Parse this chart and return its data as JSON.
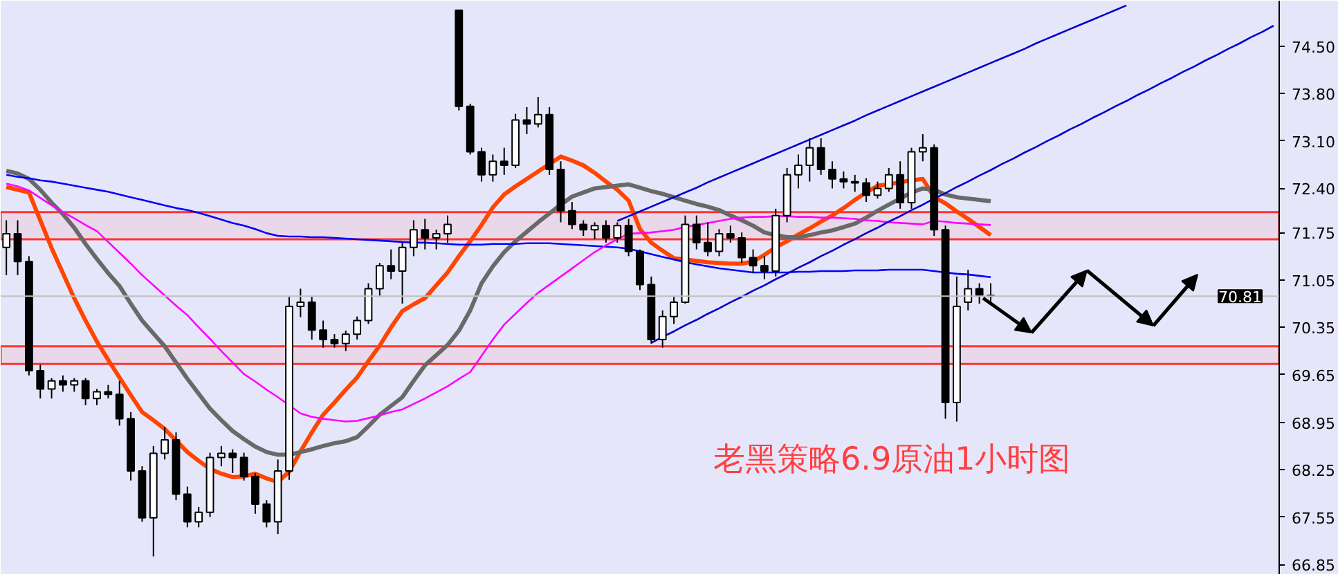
{
  "chart_data": {
    "type": "candlestick",
    "categories": [
      null,
      null,
      null,
      null,
      null,
      null,
      null,
      null,
      null,
      null,
      null,
      null,
      null,
      null,
      null,
      null,
      null,
      null,
      null,
      null,
      null,
      null,
      null,
      null,
      null,
      null,
      null,
      null,
      null,
      null,
      null,
      null,
      null,
      null,
      null,
      null,
      null,
      null,
      null,
      null,
      null,
      null,
      null,
      null,
      null,
      null,
      null,
      null,
      null,
      null,
      null,
      null,
      null,
      null,
      null,
      null,
      null,
      null,
      null,
      null,
      null,
      null,
      null,
      null,
      null,
      null,
      null,
      null,
      null,
      null,
      null,
      null,
      null,
      null,
      null,
      null,
      null,
      null,
      null,
      null,
      null,
      null,
      null,
      null,
      null,
      null,
      null,
      null,
      null,
      null,
      null,
      null,
      null,
      null,
      null,
      null,
      null,
      null,
      null,
      null,
      null,
      null,
      null,
      null,
      null,
      null,
      null,
      null,
      null,
      null,
      null,
      null,
      null
    ],
    "ohlc": [
      [
        71.53,
        71.93,
        71.12,
        71.73
      ],
      [
        71.73,
        71.93,
        71.12,
        71.32
      ],
      [
        71.32,
        71.4,
        69.64,
        69.71
      ],
      [
        69.71,
        69.8,
        69.3,
        69.44
      ],
      [
        69.44,
        69.6,
        69.3,
        69.56
      ],
      [
        69.56,
        69.64,
        69.4,
        69.5
      ],
      [
        69.5,
        69.6,
        69.4,
        69.56
      ],
      [
        69.56,
        69.6,
        69.2,
        69.3
      ],
      [
        69.3,
        69.44,
        69.2,
        69.4
      ],
      [
        69.4,
        69.5,
        69.3,
        69.36
      ],
      [
        69.36,
        69.56,
        68.9,
        69.0
      ],
      [
        69.0,
        69.1,
        68.09,
        68.23
      ],
      [
        68.23,
        68.3,
        67.48,
        67.54
      ],
      [
        67.54,
        68.6,
        66.97,
        68.49
      ],
      [
        68.49,
        68.88,
        68.4,
        68.69
      ],
      [
        68.69,
        68.8,
        67.8,
        67.89
      ],
      [
        67.89,
        68.0,
        67.4,
        67.48
      ],
      [
        67.48,
        67.7,
        67.4,
        67.62
      ],
      [
        67.62,
        68.5,
        67.55,
        68.43
      ],
      [
        68.43,
        68.6,
        68.3,
        68.49
      ],
      [
        68.49,
        68.55,
        68.2,
        68.43
      ],
      [
        68.43,
        68.5,
        68.09,
        68.15
      ],
      [
        68.15,
        68.2,
        67.6,
        67.74
      ],
      [
        67.74,
        67.8,
        67.4,
        67.48
      ],
      [
        67.48,
        68.4,
        67.3,
        68.23
      ],
      [
        68.23,
        70.8,
        68.1,
        70.66
      ],
      [
        70.66,
        70.92,
        70.5,
        70.72
      ],
      [
        70.72,
        70.8,
        70.17,
        70.31
      ],
      [
        70.31,
        70.45,
        70.05,
        70.17
      ],
      [
        70.17,
        70.25,
        70.05,
        70.11
      ],
      [
        70.11,
        70.3,
        70.0,
        70.25
      ],
      [
        70.25,
        70.51,
        70.17,
        70.45
      ],
      [
        70.45,
        71.0,
        70.4,
        70.92
      ],
      [
        70.92,
        71.3,
        70.8,
        71.26
      ],
      [
        71.26,
        71.5,
        71.06,
        71.18
      ],
      [
        71.18,
        71.6,
        70.7,
        71.53
      ],
      [
        71.53,
        71.93,
        71.4,
        71.79
      ],
      [
        71.79,
        71.95,
        71.5,
        71.67
      ],
      [
        71.67,
        71.79,
        71.5,
        71.73
      ],
      [
        71.73,
        72.0,
        71.6,
        71.87
      ],
      [
        75.03,
        75.03,
        73.55,
        73.61
      ],
      [
        73.61,
        73.65,
        72.9,
        72.94
      ],
      [
        72.94,
        73.0,
        72.5,
        72.6
      ],
      [
        72.6,
        72.9,
        72.5,
        72.8
      ],
      [
        72.8,
        73.0,
        72.6,
        72.74
      ],
      [
        72.74,
        73.5,
        72.7,
        73.41
      ],
      [
        73.41,
        73.6,
        73.2,
        73.35
      ],
      [
        73.35,
        73.75,
        73.3,
        73.49
      ],
      [
        73.49,
        73.6,
        72.6,
        72.68
      ],
      [
        72.68,
        72.8,
        71.9,
        72.07
      ],
      [
        72.07,
        72.2,
        71.8,
        71.87
      ],
      [
        71.87,
        71.93,
        71.7,
        71.79
      ],
      [
        71.79,
        71.9,
        71.65,
        71.85
      ],
      [
        71.85,
        71.93,
        71.6,
        71.67
      ],
      [
        71.67,
        71.9,
        71.6,
        71.85
      ],
      [
        71.85,
        71.95,
        71.4,
        71.47
      ],
      [
        71.47,
        71.5,
        70.9,
        70.98
      ],
      [
        70.98,
        71.1,
        70.11,
        70.17
      ],
      [
        70.17,
        70.6,
        70.05,
        70.51
      ],
      [
        70.51,
        70.8,
        70.4,
        70.72
      ],
      [
        70.72,
        72.0,
        70.7,
        71.87
      ],
      [
        71.87,
        72.0,
        71.5,
        71.6
      ],
      [
        71.6,
        71.9,
        71.4,
        71.47
      ],
      [
        71.47,
        71.8,
        71.4,
        71.73
      ],
      [
        71.73,
        71.85,
        71.6,
        71.67
      ],
      [
        71.67,
        71.75,
        71.3,
        71.38
      ],
      [
        71.38,
        71.5,
        71.15,
        71.26
      ],
      [
        71.26,
        71.4,
        71.06,
        71.18
      ],
      [
        71.18,
        72.1,
        71.1,
        72.0
      ],
      [
        72.0,
        72.7,
        71.9,
        72.6
      ],
      [
        72.6,
        72.9,
        72.4,
        72.74
      ],
      [
        72.74,
        73.14,
        72.5,
        73.0
      ],
      [
        73.0,
        73.14,
        72.6,
        72.68
      ],
      [
        72.68,
        72.8,
        72.4,
        72.54
      ],
      [
        72.54,
        72.65,
        72.4,
        72.5
      ],
      [
        72.5,
        72.6,
        72.35,
        72.48
      ],
      [
        72.48,
        72.55,
        72.2,
        72.3
      ],
      [
        72.3,
        72.5,
        72.25,
        72.4
      ],
      [
        72.4,
        72.7,
        72.35,
        72.6
      ],
      [
        72.6,
        72.8,
        72.1,
        72.19
      ],
      [
        72.19,
        73.0,
        72.1,
        72.94
      ],
      [
        72.94,
        73.2,
        72.8,
        73.0
      ],
      [
        73.0,
        73.05,
        71.7,
        71.79
      ],
      [
        71.79,
        71.85,
        69.0,
        69.24
      ],
      [
        69.24,
        71.1,
        68.96,
        70.66
      ],
      [
        70.72,
        71.2,
        70.6,
        70.92
      ],
      [
        70.92,
        71.0,
        70.7,
        70.82
      ],
      [
        70.82,
        71.0,
        70.7,
        70.81
      ],
      null,
      null,
      null,
      null,
      null,
      null,
      null,
      null,
      null,
      null,
      null,
      null,
      null,
      null,
      null,
      null,
      null,
      null,
      null,
      null,
      null,
      null,
      null,
      null,
      null
    ],
    "series": [
      {
        "type": "line",
        "color": "#ff4500",
        "values": [
          72.42,
          72.38,
          72.34,
          71.93,
          71.52,
          71.15,
          70.78,
          70.45,
          70.14,
          69.87,
          69.61,
          69.35,
          69.1,
          68.98,
          68.85,
          68.68,
          68.51,
          68.38,
          68.26,
          68.19,
          68.14,
          68.15,
          68.19,
          68.12,
          68.07,
          68.22,
          68.52,
          68.8,
          69.06,
          69.24,
          69.43,
          69.61,
          69.85,
          70.08,
          70.35,
          70.59,
          70.69,
          70.78,
          70.97,
          71.16,
          71.4,
          71.62,
          71.86,
          72.12,
          72.31,
          72.43,
          72.54,
          72.65,
          72.76,
          72.87,
          72.81,
          72.74,
          72.63,
          72.5,
          72.38,
          72.22,
          71.8,
          71.6,
          71.48,
          71.37,
          71.35,
          71.33,
          71.31,
          71.3,
          71.29,
          71.29,
          71.32,
          71.42,
          71.53,
          71.62,
          71.72,
          71.81,
          71.91,
          72.0,
          72.11,
          72.23,
          72.34,
          72.44,
          72.46,
          72.49,
          72.52,
          72.54,
          72.27,
          72.18,
          72.06,
          71.95,
          71.83,
          71.71,
          null,
          null,
          null,
          null,
          null,
          null,
          null,
          null,
          null,
          null,
          null,
          null,
          null,
          null,
          null,
          null,
          null,
          null,
          null,
          null,
          null,
          null,
          null,
          null,
          null
        ]
      },
      {
        "type": "line",
        "color": "#696969",
        "values": [
          72.66,
          72.62,
          72.54,
          72.38,
          72.19,
          72.02,
          71.82,
          71.58,
          71.36,
          71.15,
          70.96,
          70.7,
          70.45,
          70.26,
          70.07,
          69.83,
          69.59,
          69.37,
          69.15,
          68.98,
          68.82,
          68.7,
          68.59,
          68.51,
          68.47,
          68.47,
          68.51,
          68.55,
          68.6,
          68.64,
          68.67,
          68.73,
          68.89,
          69.06,
          69.19,
          69.32,
          69.56,
          69.79,
          69.94,
          70.09,
          70.3,
          70.6,
          71.0,
          71.25,
          71.46,
          71.62,
          71.76,
          71.9,
          72.03,
          72.16,
          72.28,
          72.34,
          72.4,
          72.42,
          72.44,
          72.46,
          72.41,
          72.36,
          72.32,
          72.27,
          72.22,
          72.17,
          72.13,
          72.08,
          72.0,
          71.93,
          71.85,
          71.75,
          71.71,
          71.68,
          71.68,
          71.71,
          71.75,
          71.78,
          71.83,
          71.88,
          71.97,
          72.07,
          72.16,
          72.25,
          72.34,
          72.4,
          72.38,
          72.31,
          72.27,
          72.25,
          72.23,
          72.21,
          null,
          null,
          null,
          null,
          null,
          null,
          null,
          null,
          null,
          null,
          null,
          null,
          null,
          null,
          null,
          null,
          null,
          null,
          null,
          null,
          null,
          null,
          null,
          null,
          null
        ]
      },
      {
        "type": "line",
        "color": "#0000ff",
        "values": [
          72.6,
          72.57,
          72.55,
          72.52,
          72.5,
          72.47,
          72.44,
          72.41,
          72.38,
          72.35,
          72.31,
          72.27,
          72.23,
          72.19,
          72.15,
          72.11,
          72.08,
          72.04,
          71.99,
          71.94,
          71.89,
          71.85,
          71.8,
          71.74,
          71.7,
          71.69,
          71.69,
          71.68,
          71.68,
          71.67,
          71.66,
          71.65,
          71.64,
          71.63,
          71.62,
          71.61,
          71.6,
          71.6,
          71.59,
          71.58,
          71.57,
          71.57,
          71.57,
          71.58,
          71.58,
          71.58,
          71.59,
          71.59,
          71.59,
          71.58,
          71.57,
          71.56,
          71.55,
          71.54,
          71.53,
          71.51,
          71.47,
          71.43,
          71.39,
          71.35,
          71.31,
          71.28,
          71.25,
          71.22,
          71.2,
          71.18,
          71.16,
          71.16,
          71.16,
          71.16,
          71.17,
          71.17,
          71.18,
          71.18,
          71.18,
          71.19,
          71.19,
          71.19,
          71.2,
          71.2,
          71.2,
          71.2,
          71.18,
          71.16,
          71.14,
          71.13,
          71.11,
          71.09,
          null,
          null,
          null,
          null,
          null,
          null,
          null,
          null,
          null,
          null,
          null,
          null,
          null,
          null,
          null,
          null,
          null,
          null,
          null,
          null,
          null,
          null,
          null,
          null,
          null
        ]
      },
      {
        "type": "line",
        "color": "#ff00ff",
        "values": [
          72.47,
          72.43,
          72.37,
          72.26,
          72.15,
          72.05,
          71.96,
          71.86,
          71.77,
          71.61,
          71.45,
          71.29,
          71.12,
          70.97,
          70.82,
          70.67,
          70.53,
          70.35,
          70.18,
          70.0,
          69.83,
          69.66,
          69.55,
          69.43,
          69.32,
          69.2,
          69.08,
          69.03,
          69.0,
          68.98,
          68.96,
          68.97,
          69.01,
          69.05,
          69.1,
          69.14,
          69.22,
          69.3,
          69.39,
          69.48,
          69.59,
          69.69,
          69.93,
          70.17,
          70.39,
          70.55,
          70.71,
          70.86,
          70.98,
          71.1,
          71.22,
          71.34,
          71.46,
          71.56,
          71.65,
          71.73,
          71.74,
          71.75,
          71.77,
          71.79,
          71.83,
          71.86,
          71.89,
          71.92,
          71.95,
          71.97,
          71.98,
          71.98,
          71.99,
          71.99,
          71.98,
          71.98,
          71.97,
          71.97,
          71.96,
          71.95,
          71.93,
          71.92,
          71.9,
          71.89,
          71.88,
          71.87,
          71.92,
          71.91,
          71.89,
          71.88,
          71.87,
          71.86,
          null,
          null,
          null,
          null,
          null,
          null,
          null,
          null,
          null,
          null,
          null,
          null,
          null,
          null,
          null,
          null,
          null,
          null,
          null,
          null,
          null,
          null,
          null,
          null,
          null
        ]
      },
      {
        "type": "line",
        "color": "#0000cd",
        "values": [
          null,
          null,
          null,
          null,
          null,
          null,
          null,
          null,
          null,
          null,
          null,
          null,
          null,
          null,
          null,
          null,
          null,
          null,
          null,
          null,
          null,
          null,
          null,
          null,
          null,
          null,
          null,
          null,
          null,
          null,
          null,
          null,
          null,
          null,
          null,
          null,
          null,
          null,
          null,
          null,
          null,
          null,
          null,
          null,
          null,
          null,
          null,
          null,
          null,
          null,
          null,
          null,
          null,
          null,
          71.92,
          71.99,
          72.06,
          72.13,
          72.2,
          72.27,
          72.34,
          72.41,
          72.49,
          72.56,
          72.63,
          72.7,
          72.77,
          72.84,
          72.91,
          72.98,
          73.05,
          73.12,
          73.19,
          73.26,
          73.33,
          73.4,
          73.48,
          73.55,
          73.62,
          73.69,
          73.76,
          73.83,
          73.9,
          73.97,
          74.04,
          74.11,
          74.18,
          74.25,
          74.32,
          74.39,
          74.46,
          74.54,
          74.61,
          74.68,
          74.75,
          74.82,
          74.89,
          74.96,
          75.03,
          75.1,
          null,
          null,
          null,
          null,
          null,
          null,
          null,
          null,
          null,
          null,
          null,
          null,
          null
        ]
      },
      {
        "type": "line",
        "color": "#0000cd",
        "values": [
          null,
          null,
          null,
          null,
          null,
          null,
          null,
          null,
          null,
          null,
          null,
          null,
          null,
          null,
          null,
          null,
          null,
          null,
          null,
          null,
          null,
          null,
          null,
          null,
          null,
          null,
          null,
          null,
          null,
          null,
          null,
          null,
          null,
          null,
          null,
          null,
          null,
          null,
          null,
          null,
          null,
          null,
          null,
          null,
          null,
          null,
          null,
          null,
          null,
          null,
          null,
          null,
          null,
          null,
          null,
          null,
          null,
          70.12,
          70.21,
          70.29,
          70.38,
          70.46,
          70.55,
          70.63,
          70.72,
          70.8,
          70.89,
          70.97,
          71.06,
          71.14,
          71.23,
          71.31,
          71.4,
          71.48,
          71.57,
          71.65,
          71.74,
          71.82,
          71.91,
          71.99,
          72.08,
          72.16,
          72.25,
          72.33,
          72.42,
          72.5,
          72.59,
          72.67,
          72.76,
          72.84,
          72.93,
          73.01,
          73.1,
          73.18,
          73.27,
          73.35,
          73.44,
          73.52,
          73.61,
          73.69,
          73.78,
          73.86,
          73.95,
          74.03,
          74.12,
          74.2,
          74.29,
          74.37,
          74.46,
          74.54,
          74.63,
          74.71,
          74.8
        ]
      }
    ],
    "ylim": [
      66.7,
      75.17
    ],
    "yticks": [
      66.85,
      67.55,
      68.25,
      68.95,
      69.65,
      70.35,
      71.05,
      71.75,
      {
        "value": 72.4,
        "label": "72.40"
      },
      {
        "value": 73.1,
        "label": "73.10"
      },
      {
        "value": 73.8,
        "label": "73.80"
      },
      {
        "value": 74.5,
        "label": "74.50"
      }
    ],
    "tick_labels": "y",
    "ref_lines": [
      {
        "axis": "y",
        "value": 70.81,
        "label": "70.81",
        "color": "#c0c0c0"
      }
    ],
    "bands": [
      {
        "axis": "y",
        "from": 71.65,
        "to": 72.05,
        "color": "#ff3333"
      },
      {
        "axis": "y",
        "from": 69.81,
        "to": 70.07,
        "color": "#ff3333"
      }
    ],
    "annotations": [
      "老黑策略6.9原油1小时图"
    ]
  }
}
